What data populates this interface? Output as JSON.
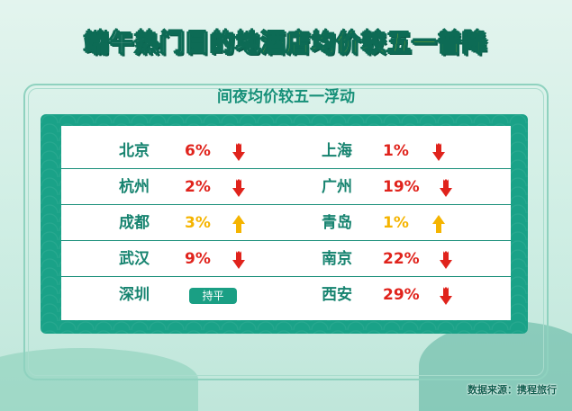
{
  "title": {
    "part1": "端午热门目的地",
    "part2": "酒店均价较五一普降"
  },
  "subtitle": "间夜均价较五一浮动",
  "colors": {
    "down": "#e0231c",
    "up": "#f5b400",
    "teal": "#1aa288"
  },
  "rows": [
    {
      "left": {
        "city": "北京",
        "value": "6%",
        "trend": "down"
      },
      "right": {
        "city": "上海",
        "value": "1%",
        "trend": "down"
      }
    },
    {
      "left": {
        "city": "杭州",
        "value": "2%",
        "trend": "down"
      },
      "right": {
        "city": "广州",
        "value": "19%",
        "trend": "down"
      }
    },
    {
      "left": {
        "city": "成都",
        "value": "3%",
        "trend": "up"
      },
      "right": {
        "city": "青岛",
        "value": "1%",
        "trend": "up"
      }
    },
    {
      "left": {
        "city": "武汉",
        "value": "9%",
        "trend": "down"
      },
      "right": {
        "city": "南京",
        "value": "22%",
        "trend": "down"
      }
    },
    {
      "left": {
        "city": "深圳",
        "value": "持平",
        "trend": "flat"
      },
      "right": {
        "city": "西安",
        "value": "29%",
        "trend": "down"
      }
    }
  ],
  "source": "数据来源：携程旅行"
}
